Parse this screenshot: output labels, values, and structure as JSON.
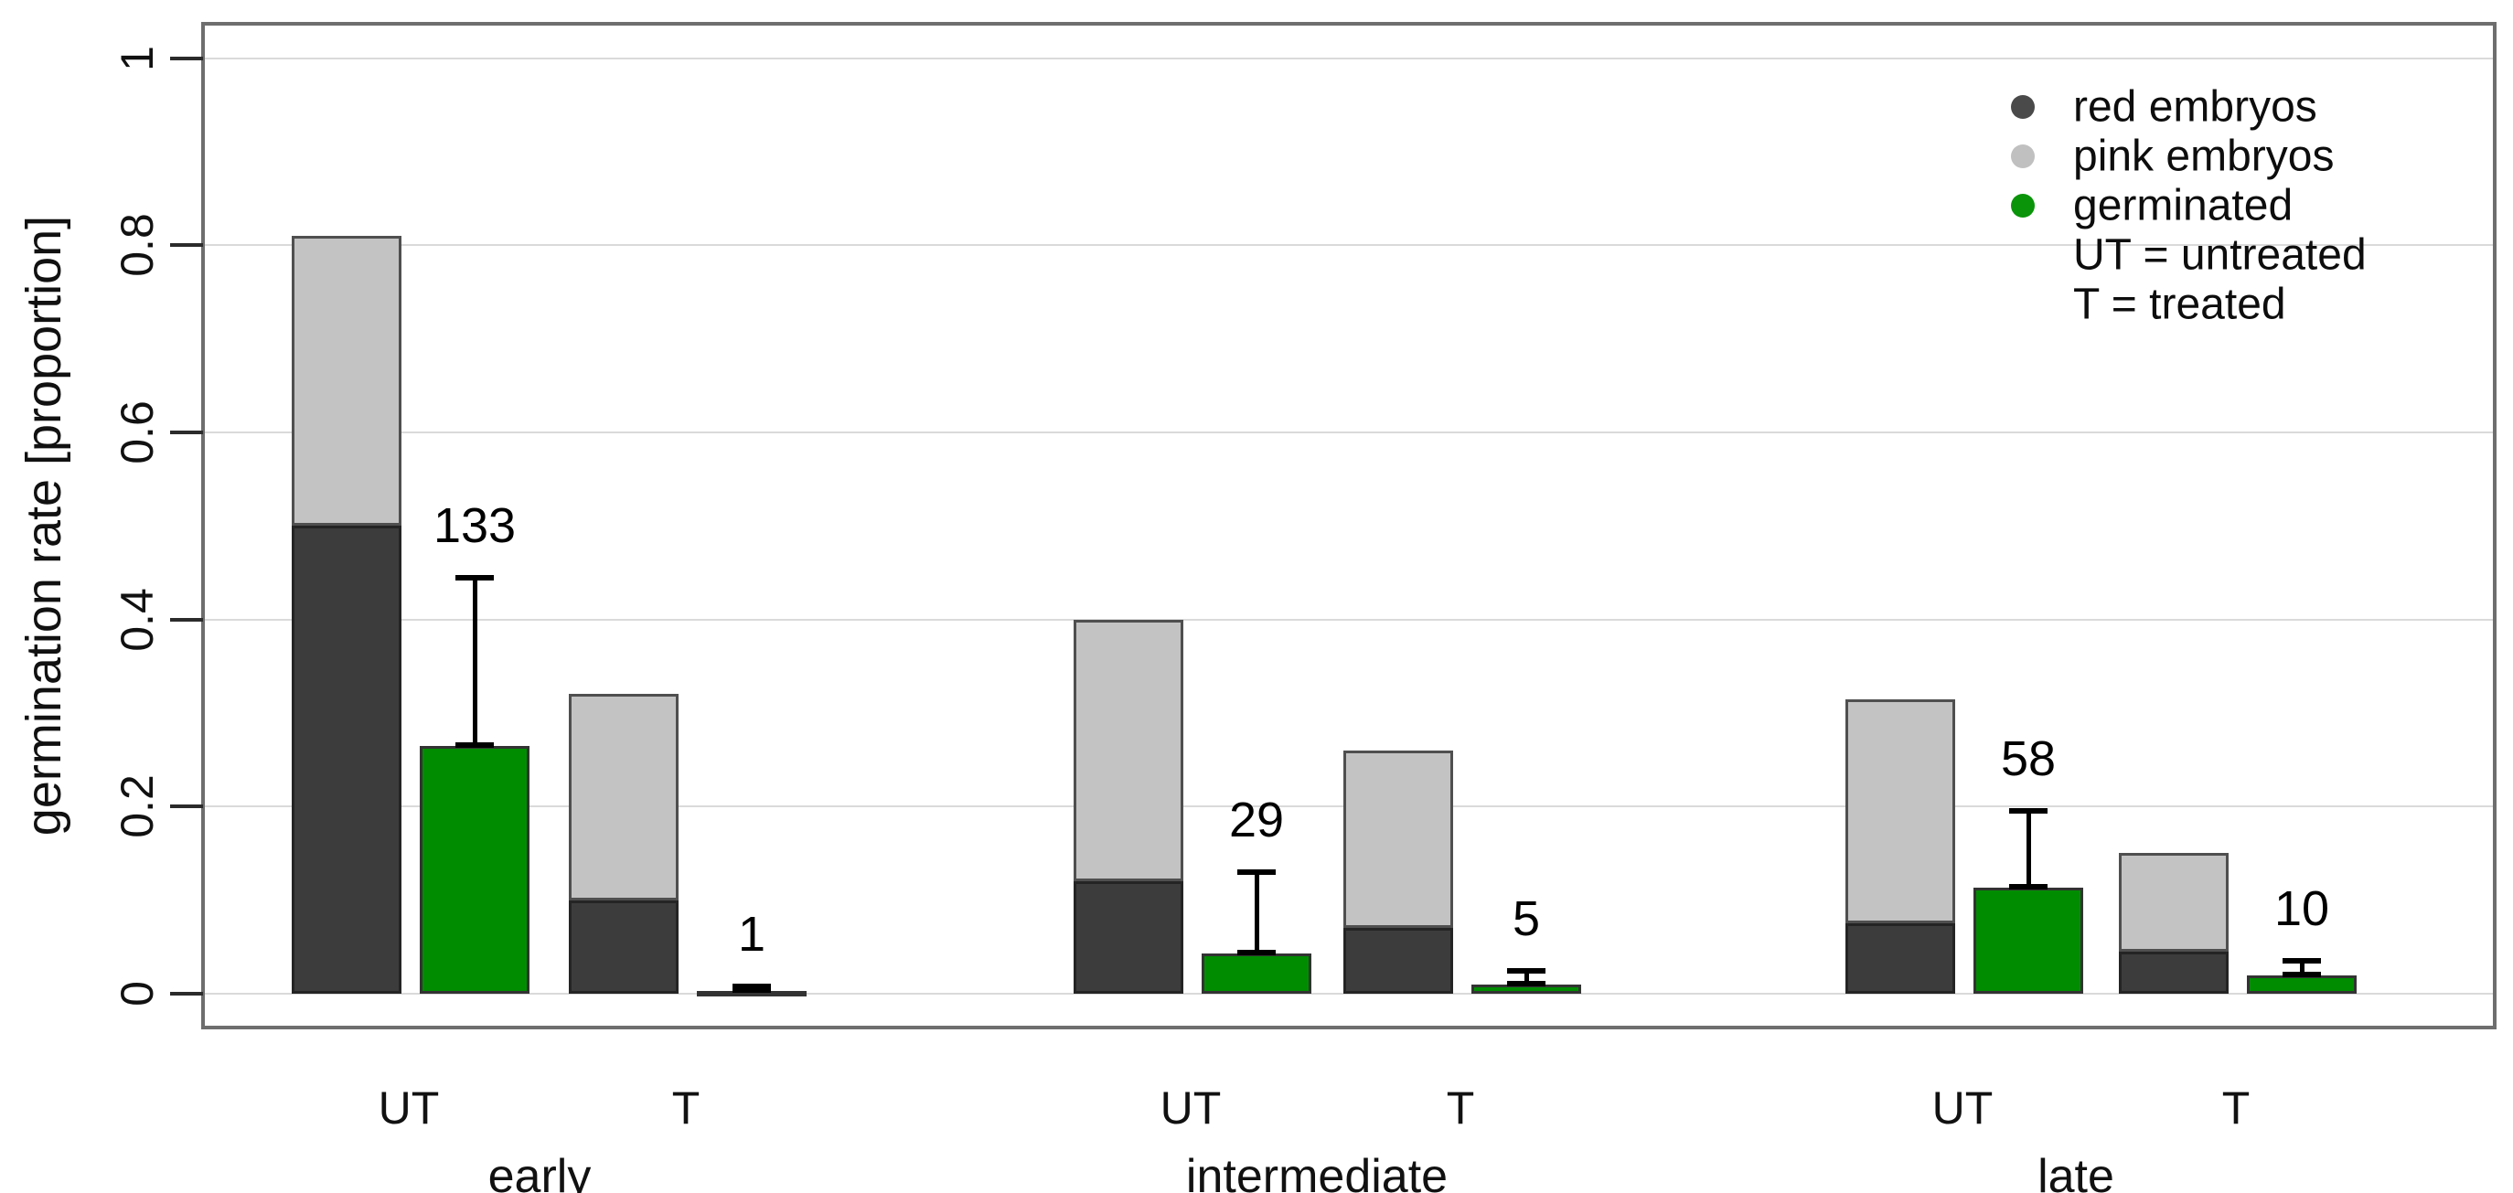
{
  "figure": {
    "y_axis_title": "germination rate [proportion]",
    "colors": {
      "red_embryos": "#3c3c3c",
      "pink_embryos": "#c3c3c3",
      "germinated": "#008c00",
      "gridline": "#dadada",
      "frame": "#6e6e6e",
      "error_bar": "#000000"
    },
    "legend": {
      "items": [
        {
          "label": "red embryos",
          "marker_color": "#4a4a4a"
        },
        {
          "label": "pink embryos",
          "marker_color": "#c0c0c0"
        },
        {
          "label": "germinated",
          "marker_color": "#0a940a"
        },
        {
          "label": "UT = untreated",
          "marker_color": null
        },
        {
          "label": "T = treated",
          "marker_color": null
        }
      ]
    }
  },
  "chart_data": {
    "type": "bar",
    "title": "",
    "xlabel": "",
    "ylabel": "germination rate [proportion]",
    "ylim": [
      0,
      1
    ],
    "grid": true,
    "legend_position": "top-right",
    "y_ticks": [
      {
        "label": "0",
        "value": 0
      },
      {
        "label": "0.2",
        "value": 0.2
      },
      {
        "label": "0.4",
        "value": 0.4
      },
      {
        "label": "0.6",
        "value": 0.6
      },
      {
        "label": "0.8",
        "value": 0.8
      },
      {
        "label": "1",
        "value": 1
      }
    ],
    "series_legend": [
      "red embryos",
      "pink embryos",
      "germinated"
    ],
    "treatment_key": {
      "UT": "untreated",
      "T": "treated"
    },
    "groups": [
      {
        "label": "early",
        "bars": [
          {
            "treatment": "UT",
            "red": 0.5,
            "pink": 0.31,
            "stack_total": 0.81,
            "germinated": 0.265,
            "err_high": 0.445,
            "count": "133"
          },
          {
            "treatment": "T",
            "red": 0.1,
            "pink": 0.22,
            "stack_total": 0.32,
            "germinated": 0.003,
            "err_high": 0.008,
            "count": "1"
          }
        ]
      },
      {
        "label": "intermediate",
        "bars": [
          {
            "treatment": "UT",
            "red": 0.12,
            "pink": 0.28,
            "stack_total": 0.4,
            "germinated": 0.043,
            "err_high": 0.13,
            "count": "29"
          },
          {
            "treatment": "T",
            "red": 0.07,
            "pink": 0.19,
            "stack_total": 0.26,
            "germinated": 0.01,
            "err_high": 0.024,
            "count": "5"
          }
        ]
      },
      {
        "label": "late",
        "bars": [
          {
            "treatment": "UT",
            "red": 0.075,
            "pink": 0.24,
            "stack_total": 0.315,
            "germinated": 0.113,
            "err_high": 0.195,
            "count": "58"
          },
          {
            "treatment": "T",
            "red": 0.045,
            "pink": 0.105,
            "stack_total": 0.15,
            "germinated": 0.02,
            "err_high": 0.035,
            "count": "10"
          }
        ]
      }
    ]
  }
}
